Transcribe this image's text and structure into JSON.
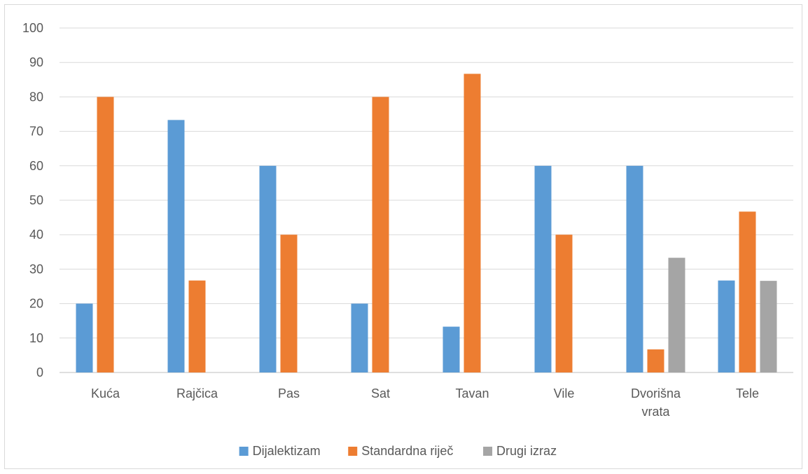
{
  "chart_data": {
    "type": "bar",
    "categories": [
      "Kuća",
      "Rajčica",
      "Pas",
      "Sat",
      "Tavan",
      "Vile",
      "Dvorišna vrata",
      "Tele"
    ],
    "category_lines": [
      [
        "Kuća"
      ],
      [
        "Rajčica"
      ],
      [
        "Pas"
      ],
      [
        "Sat"
      ],
      [
        "Tavan"
      ],
      [
        "Vile"
      ],
      [
        "Dvorišna",
        "vrata"
      ],
      [
        "Tele"
      ]
    ],
    "series": [
      {
        "name": "Dijalektizam",
        "color": "#5b9bd5",
        "values": [
          20,
          73.3,
          60,
          20,
          13.3,
          60,
          60,
          26.7
        ]
      },
      {
        "name": "Standardna riječ",
        "color": "#ed7d31",
        "values": [
          80,
          26.7,
          40,
          80,
          86.7,
          40,
          6.7,
          46.7
        ]
      },
      {
        "name": "Drugi izraz",
        "color": "#a5a5a5",
        "values": [
          0,
          0,
          0,
          0,
          0,
          0,
          33.3,
          26.6
        ]
      }
    ],
    "ylim": [
      0,
      100
    ],
    "yticks": [
      0,
      10,
      20,
      30,
      40,
      50,
      60,
      70,
      80,
      90,
      100
    ],
    "grid": true,
    "legend_position": "bottom",
    "title": "",
    "xlabel": "",
    "ylabel": ""
  }
}
